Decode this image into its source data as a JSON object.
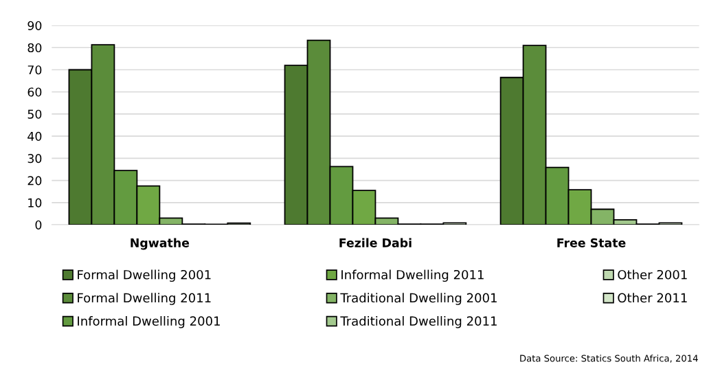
{
  "chart_data": {
    "type": "bar",
    "categories": [
      "Ngwathe",
      "Fezile Dabi",
      "Free State"
    ],
    "series": [
      {
        "name": "Formal Dwelling 2001",
        "color": "#4e7a30",
        "values": [
          70,
          72,
          66.5
        ]
      },
      {
        "name": "Formal Dwelling 2011",
        "color": "#5b8c3a",
        "values": [
          81.3,
          83.3,
          81
        ]
      },
      {
        "name": "Informal Dwelling 2001",
        "color": "#639b40",
        "values": [
          24.5,
          26.3,
          25.9
        ]
      },
      {
        "name": "Informal Dwelling 2011",
        "color": "#70a844",
        "values": [
          17.5,
          15.5,
          15.8
        ]
      },
      {
        "name": "Traditional Dwelling 2001",
        "color": "#84b466",
        "values": [
          3,
          3,
          7
        ]
      },
      {
        "name": "Traditional Dwelling 2011",
        "color": "#a3c98e",
        "values": [
          0.3,
          0.3,
          2.2
        ]
      },
      {
        "name": "Other 2001",
        "color": "#bfd9b0",
        "values": [
          0.2,
          0.3,
          0.3
        ]
      },
      {
        "name": "Other 2011",
        "color": "#d3e6c8",
        "values": [
          0.7,
          0.8,
          0.8
        ]
      }
    ],
    "ylim": [
      0,
      90
    ],
    "yticks": [
      0,
      10,
      20,
      30,
      40,
      50,
      60,
      70,
      80,
      90
    ],
    "grid": "y",
    "legend": "bottom",
    "annotations": [
      "Data Source: Statics South Africa, 2014"
    ]
  }
}
